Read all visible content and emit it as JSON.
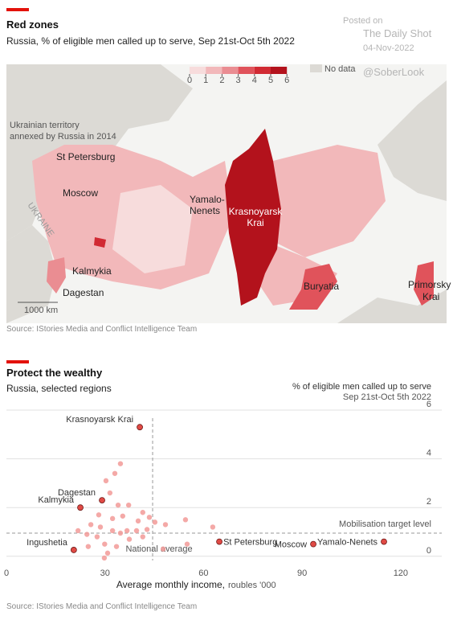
{
  "watermark": [
    "Posted on",
    "The Daily Shot",
    "04-Nov-2022",
    "@SoberLook"
  ],
  "chart_data": [
    {
      "type": "map",
      "title": "Red zones",
      "subtitle": "Russia, % of eligible men called up to serve, Sep 21st-Oct 5th 2022",
      "legend_ticks": [
        0,
        1,
        2,
        3,
        4,
        5,
        6
      ],
      "legend_colors": [
        "#f7dcdc",
        "#f2b8ba",
        "#ea8d92",
        "#e0535b",
        "#d12a33",
        "#b3121c"
      ],
      "no_data_label": "No data",
      "no_data_color": "#dcdad5",
      "labels": {
        "annexed": [
          "Ukrainian territory",
          "annexed by Russia in 2014"
        ],
        "st_petersburg": "St Petersburg",
        "moscow": "Moscow",
        "ukraine": "UKRAINE",
        "kalmykia": "Kalmykia",
        "dagestan": "Dagestan",
        "yamalo": [
          "Yamalo-",
          "Nenets"
        ],
        "krasnoyarsk": [
          "Krasnoyarsk",
          "Krai"
        ],
        "buryatia": "Buryatia",
        "primorsky": [
          "Primorsky",
          "Krai"
        ],
        "scale": "1000 km"
      },
      "source": "Source: IStories Media and Conflict Intelligence Team"
    },
    {
      "type": "scatter",
      "title": "Protect the wealthy",
      "subtitle": "Russia, selected regions",
      "y_label": [
        "% of eligible men called up to serve",
        "Sep 21st-Oct 5th 2022"
      ],
      "x_label": "Average monthly income,",
      "x_label_unit": "roubles '000",
      "xlim": [
        0,
        132.5
      ],
      "xticks": [
        0,
        30,
        60,
        90,
        120
      ],
      "ylim": [
        -0.7,
        6
      ],
      "yticks": [
        0,
        2,
        4,
        6
      ],
      "grid": true,
      "series": [
        {
          "color": "#e04a45",
          "labels": [
            "Krasnoyarsk Krai",
            "Dagestan",
            "Kalmykia",
            "Ingushetia",
            "St Petersburg",
            "Moscow",
            "Yamalo-Nenets"
          ],
          "x": [
            40.6,
            29.1,
            22.5,
            20.5,
            64.8,
            93.4,
            114.9
          ],
          "values": [
            5.3,
            2.3,
            2.0,
            0.26,
            0.6,
            0.5,
            0.6
          ]
        },
        {
          "color": "#f29a98",
          "x": [
            34.7,
            33,
            30.3,
            31.5,
            34,
            37.2,
            41.5,
            43.5,
            48.4,
            54.5,
            55,
            47.7,
            28.1,
            25.7,
            21.8,
            24.5,
            27.6,
            29.9,
            32.3,
            34.7,
            36.7,
            37.4,
            39.6,
            41.5,
            42.8,
            45.2,
            30.8,
            29.8,
            33.5,
            24.9,
            62.8,
            40.1,
            35.4,
            28.6,
            32.3
          ],
          "values": [
            3.8,
            3.4,
            3.1,
            2.6,
            2.1,
            2.1,
            1.8,
            1.6,
            1.3,
            1.5,
            0.5,
            0.3,
            1.7,
            1.3,
            1.05,
            0.9,
            0.8,
            0.5,
            1.05,
            0.95,
            1.05,
            0.7,
            1.05,
            0.8,
            1.1,
            1.4,
            0.13,
            -0.07,
            0.4,
            0.4,
            1.2,
            1.45,
            1.65,
            1.2,
            1.55
          ]
        }
      ],
      "national_average": 44.5,
      "national_average_label": "National average",
      "target_level": 0.95,
      "target_label": "Mobilisation target level",
      "source": "Source: IStories Media and Conflict Intelligence Team"
    }
  ]
}
